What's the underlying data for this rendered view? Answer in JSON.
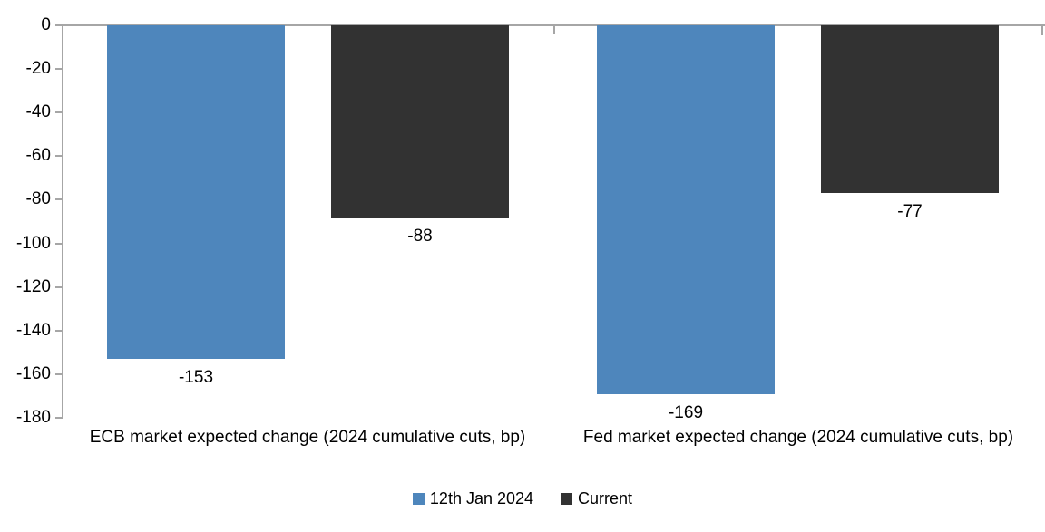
{
  "chart_data": {
    "type": "bar",
    "title": "",
    "categories": [
      "ECB market expected change (2024 cumulative cuts, bp)",
      "Fed market expected change (2024 cumulative cuts, bp)"
    ],
    "series": [
      {
        "name": "12th Jan 2024",
        "color": "#4E86BC",
        "values": [
          -153,
          -169
        ]
      },
      {
        "name": "Current",
        "color": "#323232",
        "values": [
          -88,
          -77
        ]
      }
    ],
    "data_labels": [
      [
        "-153",
        "-169"
      ],
      [
        "-88",
        "-77"
      ]
    ],
    "xlabel": "",
    "ylabel": "",
    "ylim": [
      -180,
      0
    ],
    "ytick_step": 20,
    "yticks": [
      0,
      -20,
      -40,
      -60,
      -80,
      -100,
      -120,
      -140,
      -160,
      -180
    ],
    "ytick_labels": [
      "0",
      "-20",
      "-40",
      "-60",
      "-80",
      "-100",
      "-120",
      "-140",
      "-160",
      "-180"
    ],
    "grid": false,
    "legend_position": "bottom",
    "colors": {
      "axis": "#A6A6A6",
      "text": "#000000",
      "background": "#FFFFFF"
    }
  }
}
